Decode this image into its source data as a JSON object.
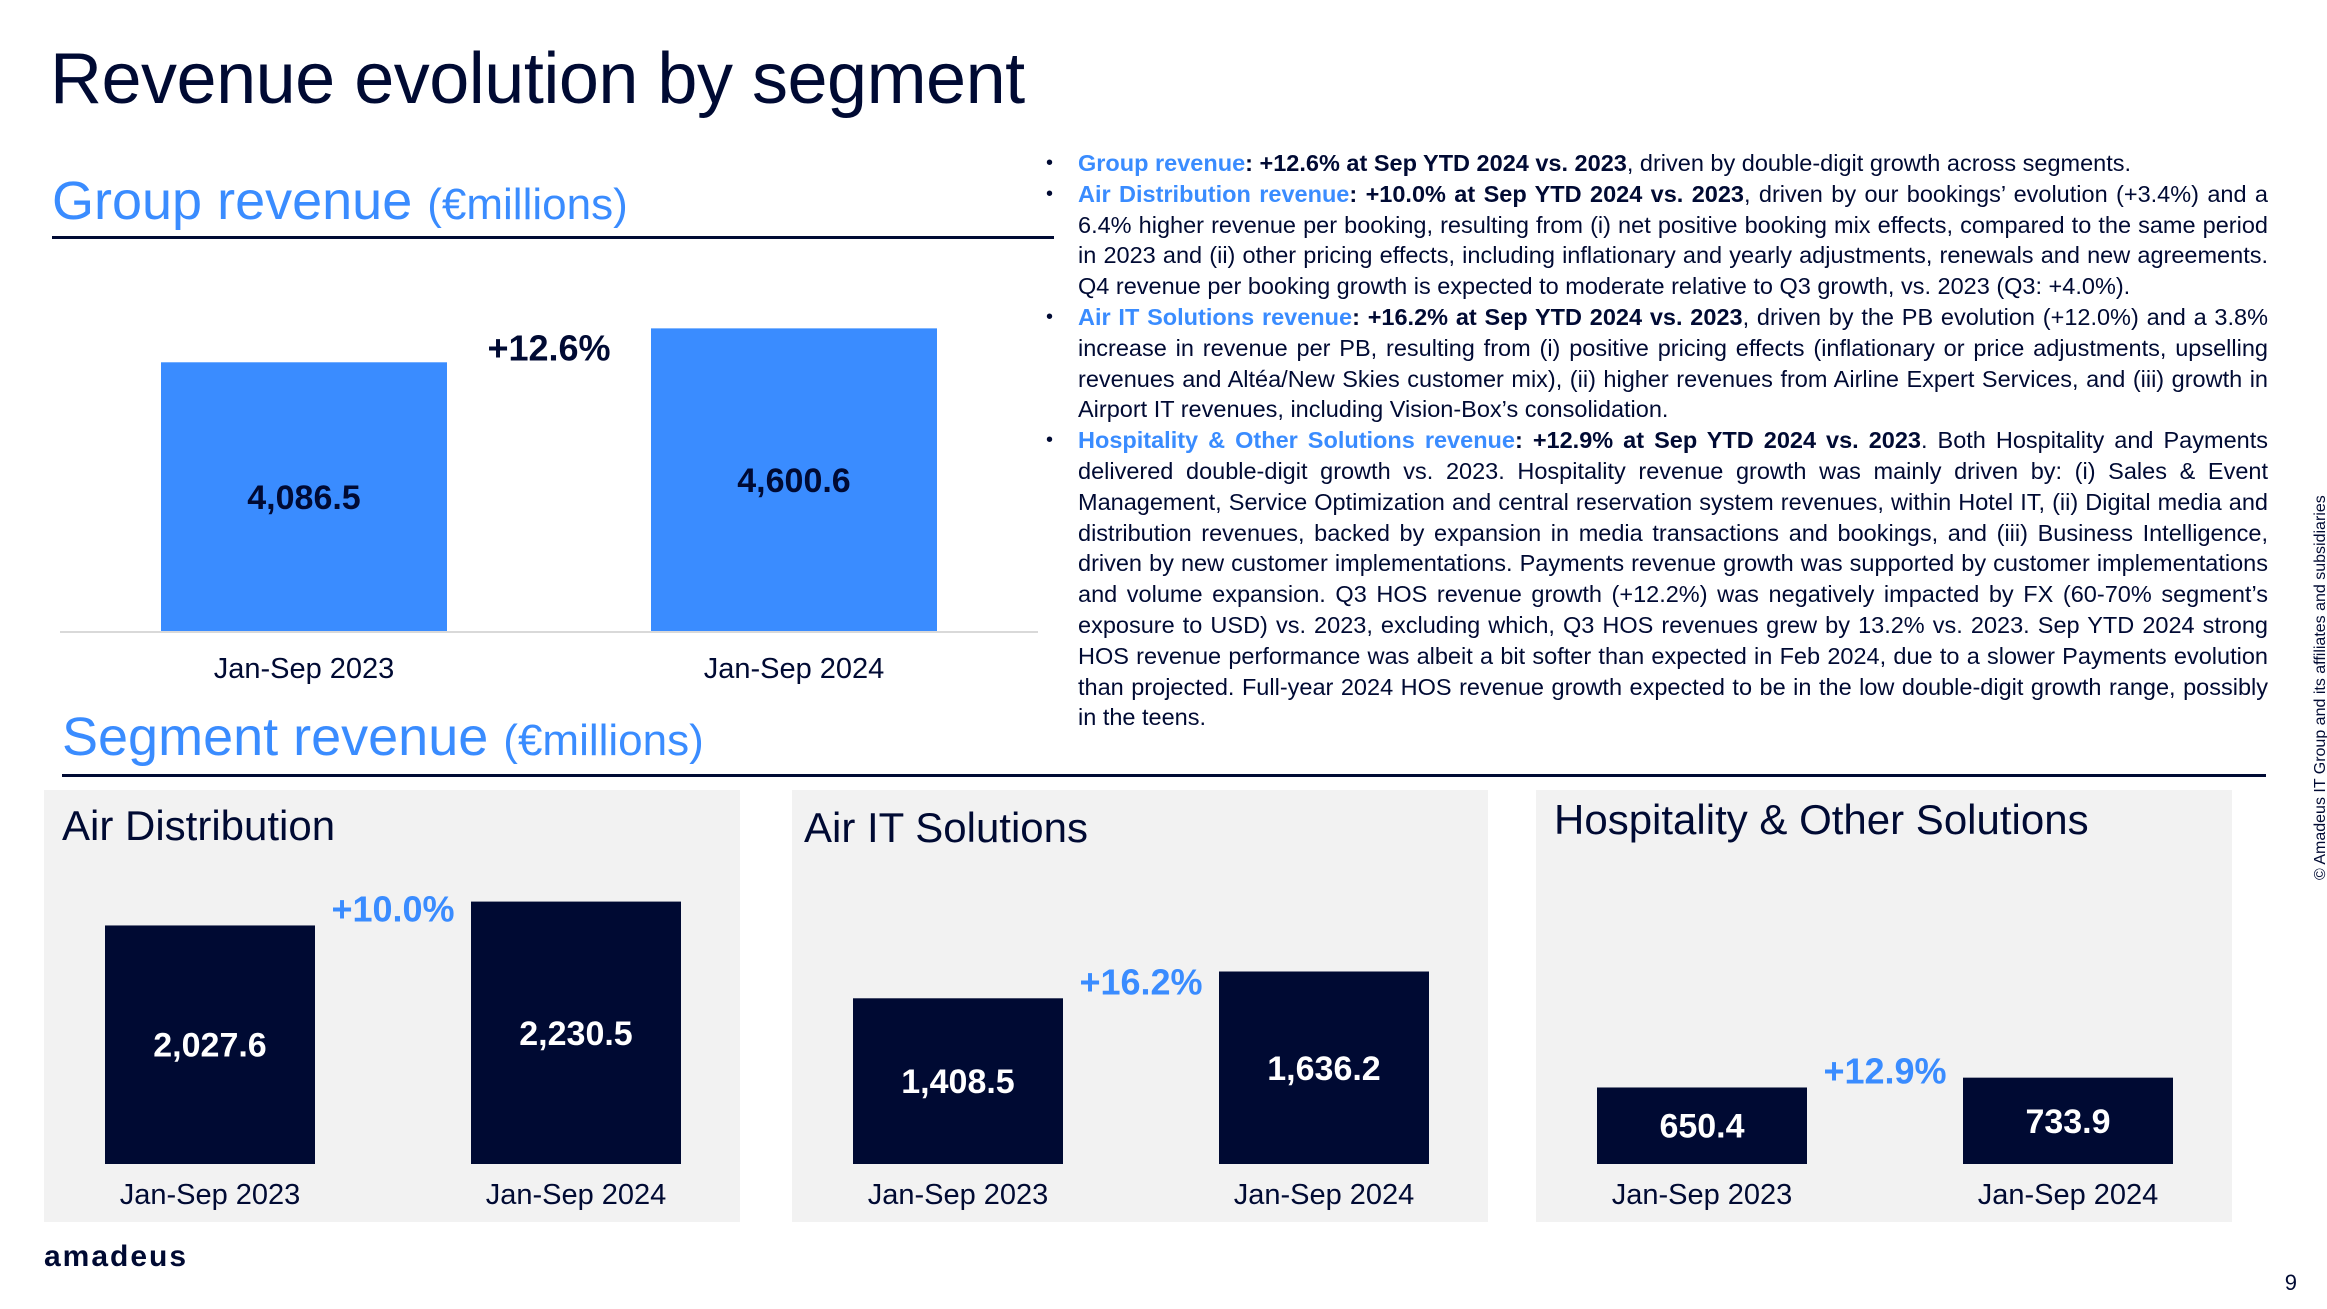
{
  "title": "Revenue evolution by segment",
  "group_section": {
    "title": "Group revenue",
    "unit": "(€millions)"
  },
  "segment_section": {
    "title": "Segment revenue",
    "unit": "(€millions)"
  },
  "colors": {
    "accent": "#3a8cff",
    "navy": "#000a33",
    "panel_bg": "#f2f2f2"
  },
  "bullets": [
    {
      "label": "Group revenue",
      "bold": ": +12.6% at Sep YTD 2024 vs. 2023",
      "text": ", driven by double-digit growth across segments."
    },
    {
      "label": "Air Distribution revenue",
      "bold": ": +10.0% at Sep YTD 2024 vs. 2023",
      "text": ", driven by our bookings’ evolution (+3.4%) and a 6.4% higher revenue per booking, resulting from (i) net positive booking mix effects, compared to the same period in 2023 and (ii) other pricing effects, including inflationary and yearly adjustments, renewals and new agreements. Q4 revenue per booking growth is expected to moderate relative to Q3 growth, vs. 2023 (Q3: +4.0%)."
    },
    {
      "label": "Air IT Solutions revenue",
      "bold": ": +16.2% at Sep YTD 2024 vs. 2023",
      "text": ", driven by the PB evolution (+12.0%) and a 3.8% increase in revenue per PB, resulting from (i) positive pricing effects (inflationary or price adjustments, upselling revenues and Altéa/New Skies customer mix), (ii) higher revenues from Airline Expert Services, and (iii) growth in Airport IT revenues, including Vision-Box’s consolidation."
    },
    {
      "label": "Hospitality & Other Solutions revenue",
      "bold": ": +12.9% at Sep YTD 2024 vs. 2023",
      "text": ". Both Hospitality and Payments delivered double-digit growth vs. 2023. Hospitality revenue growth was mainly driven by: (i) Sales & Event Management, Service Optimization and central reservation system revenues, within Hotel IT, (ii) Digital media and distribution revenues, backed by expansion in media transactions and bookings, and (iii) Business Intelligence, driven by new customer implementations. Payments revenue growth was supported by customer implementations and volume expansion. Q3 HOS revenue growth (+12.2%) was negatively impacted by FX (60-70% segment’s exposure to USD) vs. 2023, excluding which, Q3 HOS revenues grew by 13.2% vs. 2023. Sep YTD 2024 strong HOS revenue performance was albeit a bit softer than expected in Feb 2024, due to a slower Payments evolution than projected. Full-year 2024 HOS revenue growth expected to be in the low double-digit growth range, possibly in the teens."
    }
  ],
  "chart_data": [
    {
      "id": "group",
      "type": "bar",
      "title": "Group revenue (€millions)",
      "categories": [
        "Jan-Sep 2023",
        "Jan-Sep 2024"
      ],
      "values": [
        4086.5,
        4600.6
      ],
      "value_labels": [
        "4,086.5",
        "4,600.6"
      ],
      "growth_label": "+12.6%",
      "ylim": [
        0,
        5000
      ]
    },
    {
      "id": "air_distribution",
      "type": "bar",
      "title": "Air Distribution",
      "categories": [
        "Jan-Sep 2023",
        "Jan-Sep 2024"
      ],
      "values": [
        2027.6,
        2230.5
      ],
      "value_labels": [
        "2,027.6",
        "2,230.5"
      ],
      "growth_label": "+10.0%",
      "ylim": [
        0,
        2380
      ]
    },
    {
      "id": "air_it_solutions",
      "type": "bar",
      "title": "Air IT Solutions",
      "categories": [
        "Jan-Sep 2023",
        "Jan-Sep 2024"
      ],
      "values": [
        1408.5,
        1636.2
      ],
      "value_labels": [
        "1,408.5",
        "1,636.2"
      ],
      "growth_label": "+16.2%",
      "ylim": [
        0,
        2380
      ]
    },
    {
      "id": "hospitality_other",
      "type": "bar",
      "title": "Hospitality & Other Solutions",
      "categories": [
        "Jan-Sep 2023",
        "Jan-Sep 2024"
      ],
      "values": [
        650.4,
        733.9
      ],
      "value_labels": [
        "650.4",
        "733.9"
      ],
      "growth_label": "+12.9%",
      "ylim": [
        0,
        2380
      ]
    }
  ],
  "footer": {
    "logo": "amadeus",
    "page_number": "9",
    "copyright": "© Amadeus IT Group and its affiliates and subsidiaries"
  }
}
